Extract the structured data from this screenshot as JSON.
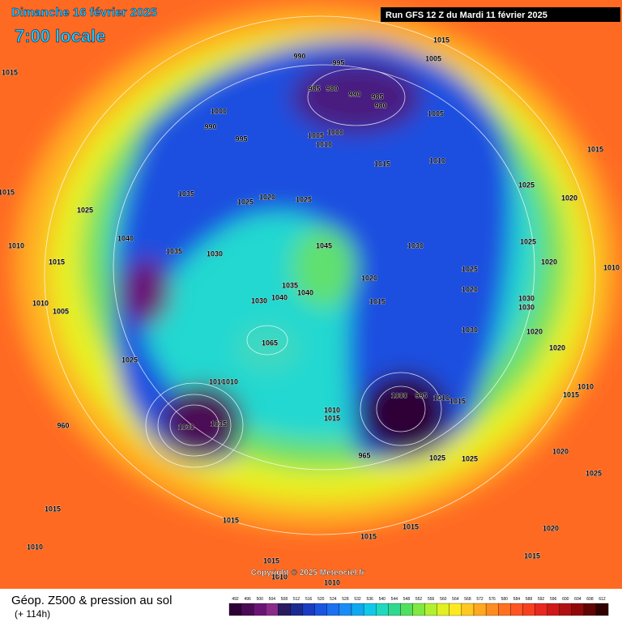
{
  "header": {
    "date": "Dimanche 16 février 2025",
    "time": "7:00 locale",
    "run": "Run GFS 12 Z du Mardi 11 février 2025"
  },
  "map": {
    "pressure_labels": [
      "1015",
      "1005",
      "990",
      "995",
      "985",
      "980",
      "990",
      "985",
      "980",
      "1005",
      "1000",
      "990",
      "995",
      "1005",
      "1000",
      "1010",
      "1015",
      "1010",
      "1035",
      "1025",
      "1020",
      "1025",
      "1025",
      "1020",
      "1015",
      "1015",
      "1015",
      "1025",
      "1040",
      "1010",
      "1035",
      "1030",
      "1015",
      "1045",
      "1030",
      "1025",
      "1025",
      "1020",
      "1020",
      "1035",
      "1040",
      "1030",
      "1040",
      "1015",
      "1030",
      "1030",
      "1020",
      "1010",
      "1010",
      "1005",
      "1025",
      "1065",
      "1030",
      "1020",
      "1020",
      "1010",
      "1010",
      "1000",
      "995",
      "1010",
      "1015",
      "1010",
      "1015",
      "1030",
      "1035",
      "960",
      "965",
      "1025",
      "1025",
      "1020",
      "1025",
      "1015",
      "1015",
      "1015",
      "1015",
      "1020",
      "1015",
      "1010",
      "1010",
      "1010",
      "1015",
      "1015",
      "1010"
    ]
  },
  "footer": {
    "copyright": "Copyright © 2025 Meteociel.fr",
    "title": "Géop. Z500 & pression au sol",
    "subtitle": "(+ 114h)",
    "scale": {
      "ticks": [
        492,
        496,
        500,
        504,
        508,
        512,
        516,
        520,
        524,
        528,
        532,
        536,
        540,
        544,
        548,
        552,
        556,
        560,
        564,
        568,
        572,
        576,
        580,
        584,
        588,
        592,
        596,
        600,
        604,
        608,
        612
      ],
      "colors": [
        "#2d0035",
        "#4b0a55",
        "#6a1575",
        "#8a2a8a",
        "#2a1a60",
        "#1a2a90",
        "#1a3cc0",
        "#1a55e0",
        "#1a70f0",
        "#1a8cf5",
        "#10a8f0",
        "#10c8e8",
        "#20d8c0",
        "#30d890",
        "#50e060",
        "#80e840",
        "#b0f030",
        "#e0f020",
        "#ffe820",
        "#ffc820",
        "#ffa820",
        "#ff8c20",
        "#ff7020",
        "#ff5520",
        "#f84020",
        "#e82820",
        "#d01818",
        "#b01010",
        "#900808",
        "#600404",
        "#300000"
      ]
    }
  }
}
